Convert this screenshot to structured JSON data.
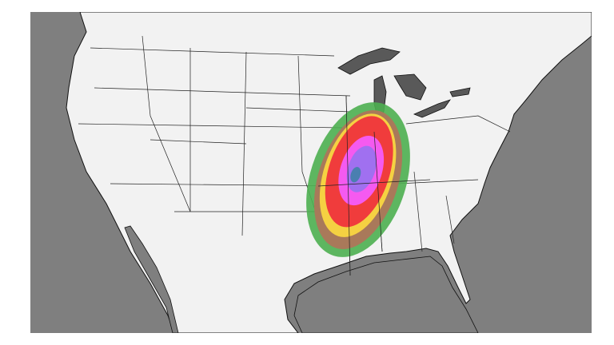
{
  "map": {
    "colors": {
      "ocean": "#7f7f7f",
      "land": "#f2f2f2",
      "lakes": "#595959",
      "borders": "#111111"
    },
    "contour_colors": [
      "#4caf50",
      "#a9795a",
      "#f5d142",
      "#f03c3c",
      "#f55af0",
      "#a070f0",
      "#4a7fb0"
    ]
  }
}
